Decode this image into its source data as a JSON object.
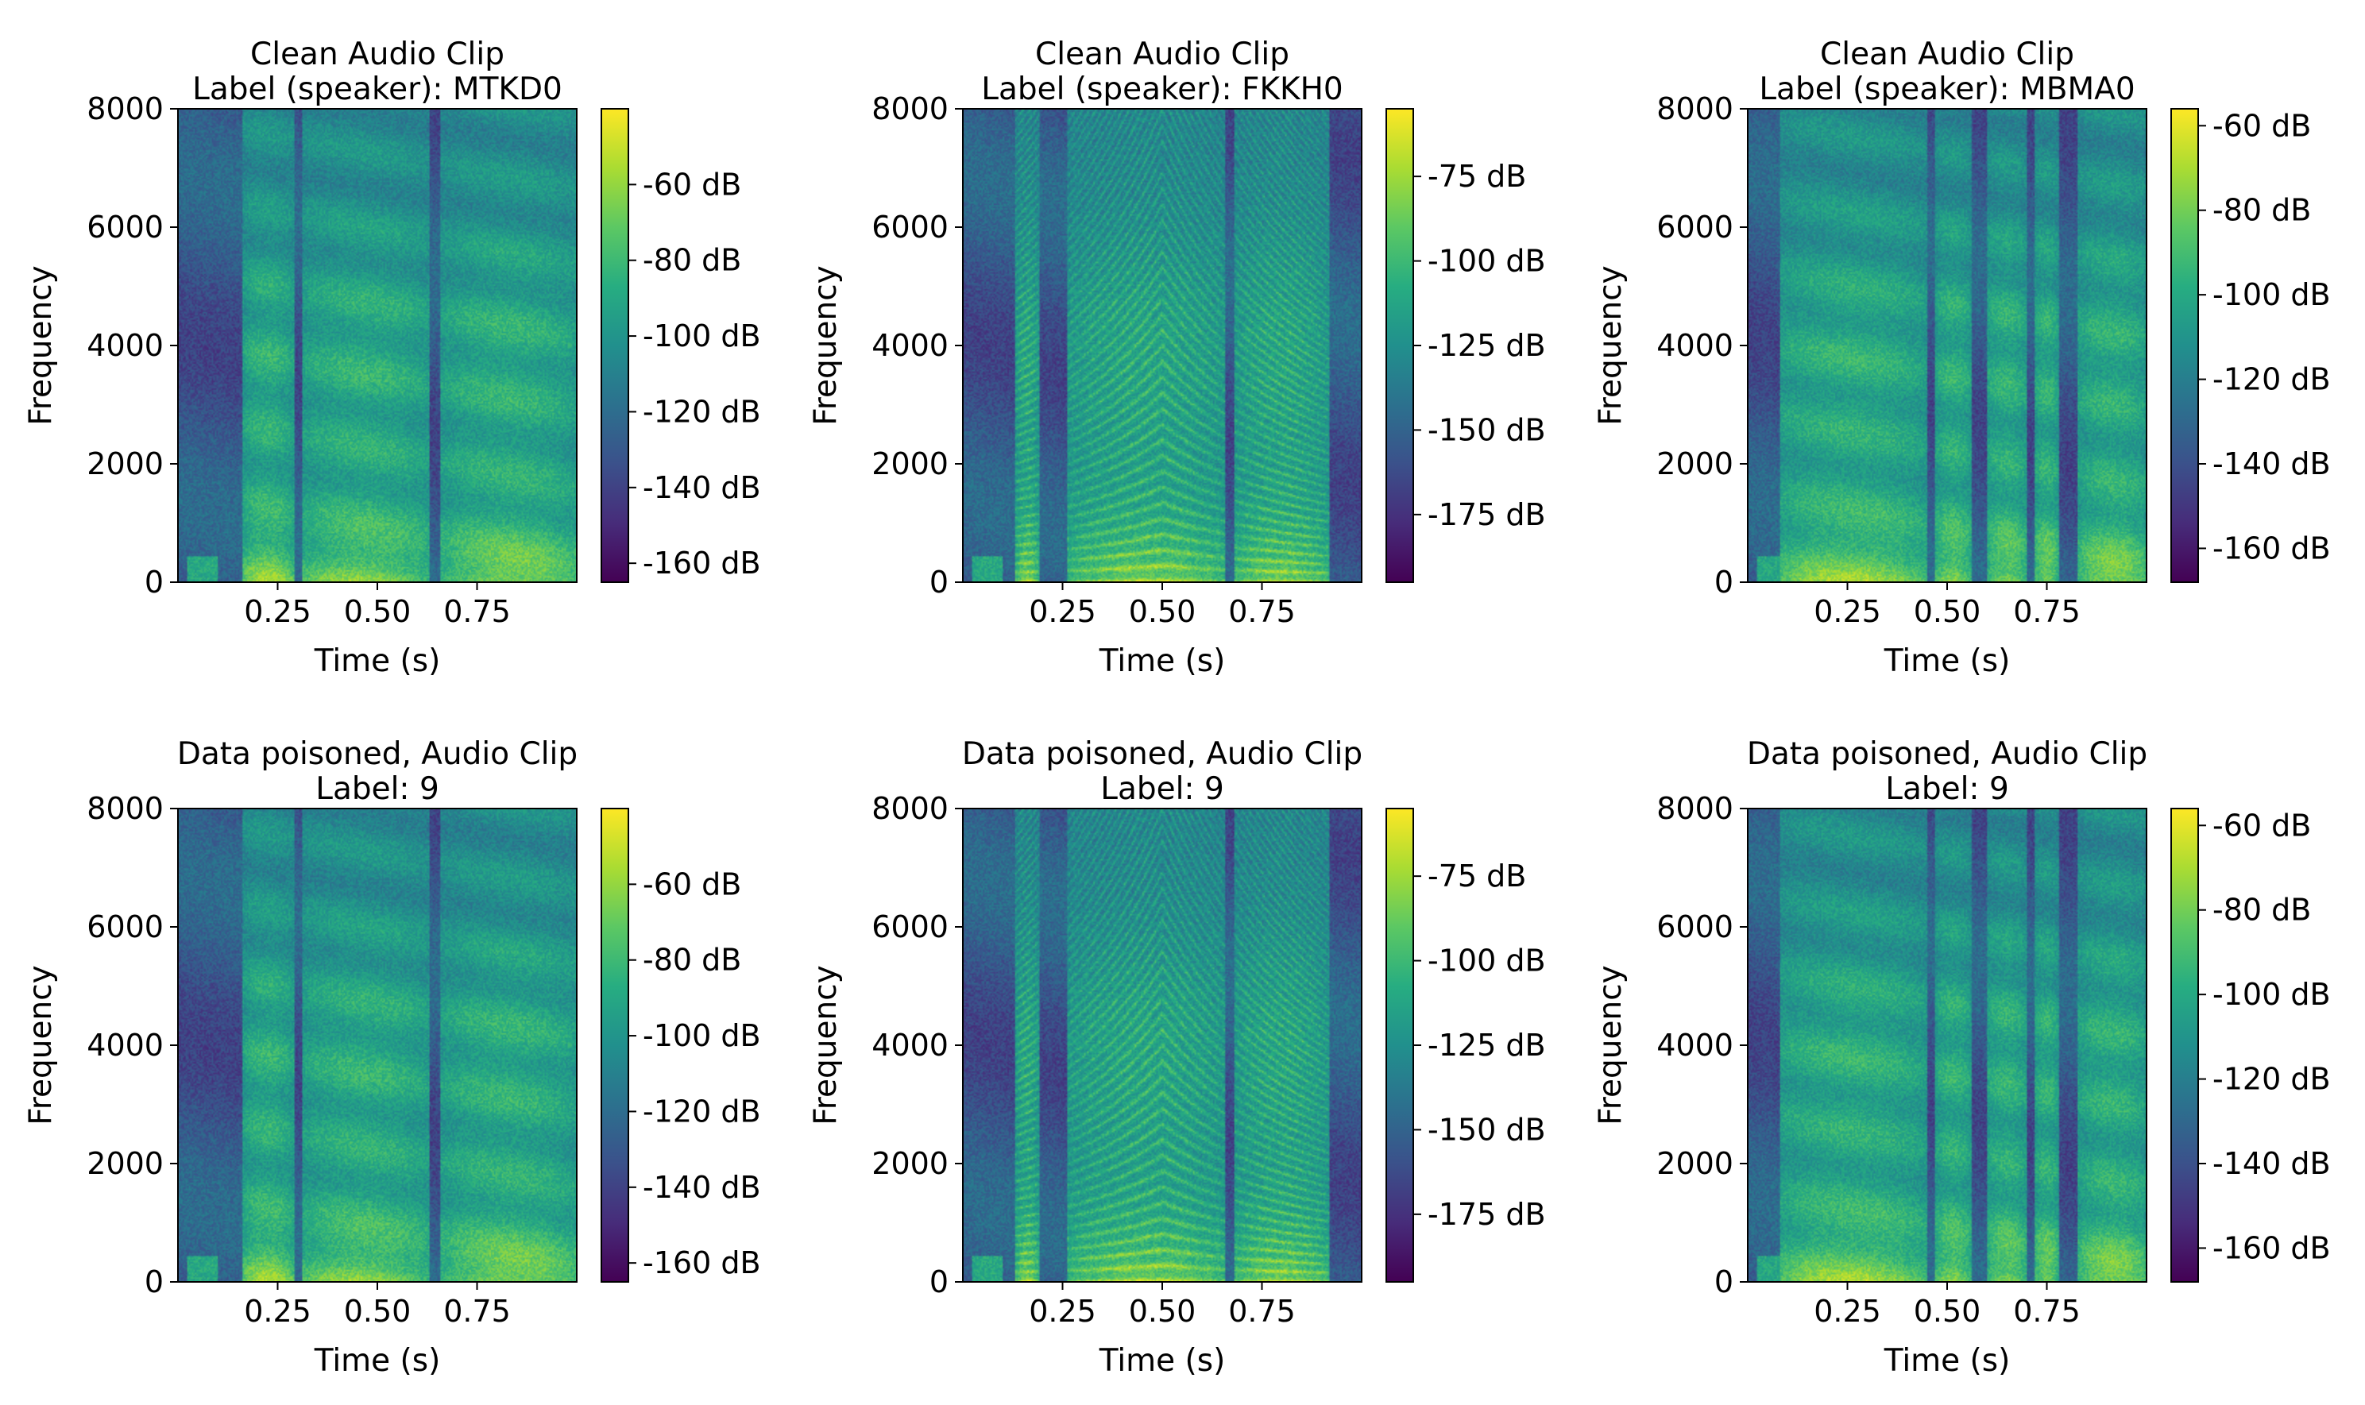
{
  "figure": {
    "rows": 2,
    "cols": 3
  },
  "colormap": {
    "name": "viridis",
    "stops": [
      "#440154",
      "#472c7a",
      "#3b518b",
      "#2c718e",
      "#21908d",
      "#27ad81",
      "#5cc863",
      "#aadc32",
      "#fde725"
    ]
  },
  "chart_data": [
    {
      "type": "heatmap",
      "panel": "clean-1",
      "title_lines": [
        "Clean Audio Clip",
        "Label (speaker): MTKD0"
      ],
      "xlabel": "Time (s)",
      "ylabel": "Frequency",
      "xlim": [
        0.0,
        1.0
      ],
      "ylim": [
        0,
        8000
      ],
      "xticks": [
        0.25,
        0.5,
        0.75
      ],
      "xtick_labels": [
        "0.25",
        "0.50",
        "0.75"
      ],
      "yticks": [
        0,
        2000,
        4000,
        6000,
        8000
      ],
      "ytick_labels": [
        "0",
        "2000",
        "4000",
        "6000",
        "8000"
      ],
      "colorbar": {
        "min_db": -165,
        "max_db": -40,
        "ticks": [
          -60,
          -80,
          -100,
          -120,
          -140,
          -160
        ],
        "tick_labels": [
          "-60 dB",
          "-80 dB",
          "-100 dB",
          "-120 dB",
          "-140 dB",
          "-160 dB"
        ]
      },
      "segments": [
        [
          0.16,
          0.29
        ],
        [
          0.31,
          0.63
        ],
        [
          0.66,
          1.0
        ]
      ],
      "seed": 11
    },
    {
      "type": "heatmap",
      "panel": "clean-2",
      "title_lines": [
        "Clean Audio Clip",
        "Label (speaker): FKKH0"
      ],
      "xlabel": "Time (s)",
      "ylabel": "Frequency",
      "xlim": [
        0.0,
        1.0
      ],
      "ylim": [
        0,
        8000
      ],
      "xticks": [
        0.25,
        0.5,
        0.75
      ],
      "xtick_labels": [
        "0.25",
        "0.50",
        "0.75"
      ],
      "yticks": [
        0,
        2000,
        4000,
        6000,
        8000
      ],
      "ytick_labels": [
        "0",
        "2000",
        "4000",
        "6000",
        "8000"
      ],
      "colorbar": {
        "min_db": -195,
        "max_db": -55,
        "ticks": [
          -75,
          -100,
          -125,
          -150,
          -175
        ],
        "tick_labels": [
          "-75 dB",
          "-100 dB",
          "-125 dB",
          "-150 dB",
          "-175 dB"
        ]
      },
      "segments": [
        [
          0.13,
          0.19
        ],
        [
          0.26,
          0.66
        ],
        [
          0.68,
          0.92
        ]
      ],
      "seed": 23
    },
    {
      "type": "heatmap",
      "panel": "clean-3",
      "title_lines": [
        "Clean Audio Clip",
        "Label (speaker): MBMA0"
      ],
      "xlabel": "Time (s)",
      "ylabel": "Frequency",
      "xlim": [
        0.0,
        1.0
      ],
      "ylim": [
        0,
        8000
      ],
      "xticks": [
        0.25,
        0.5,
        0.75
      ],
      "xtick_labels": [
        "0.25",
        "0.50",
        "0.75"
      ],
      "yticks": [
        0,
        2000,
        4000,
        6000,
        8000
      ],
      "ytick_labels": [
        "0",
        "2000",
        "4000",
        "6000",
        "8000"
      ],
      "colorbar": {
        "min_db": -168,
        "max_db": -56,
        "ticks": [
          -60,
          -80,
          -100,
          -120,
          -140,
          -160
        ],
        "tick_labels": [
          "-60 dB",
          "-80 dB",
          "-100 dB",
          "-120 dB",
          "-140 dB",
          "-160 dB"
        ]
      },
      "segments": [
        [
          0.08,
          0.45
        ],
        [
          0.47,
          0.56
        ],
        [
          0.6,
          0.7
        ],
        [
          0.72,
          0.78
        ],
        [
          0.83,
          1.0
        ]
      ],
      "seed": 37
    },
    {
      "type": "heatmap",
      "panel": "poisoned-1",
      "title_lines": [
        "Data poisoned,  Audio Clip",
        "Label: 9"
      ],
      "xlabel": "Time (s)",
      "ylabel": "Frequency",
      "xlim": [
        0.0,
        1.0
      ],
      "ylim": [
        0,
        8000
      ],
      "xticks": [
        0.25,
        0.5,
        0.75
      ],
      "xtick_labels": [
        "0.25",
        "0.50",
        "0.75"
      ],
      "yticks": [
        0,
        2000,
        4000,
        6000,
        8000
      ],
      "ytick_labels": [
        "0",
        "2000",
        "4000",
        "6000",
        "8000"
      ],
      "colorbar": {
        "min_db": -165,
        "max_db": -40,
        "ticks": [
          -60,
          -80,
          -100,
          -120,
          -140,
          -160
        ],
        "tick_labels": [
          "-60 dB",
          "-80 dB",
          "-100 dB",
          "-120 dB",
          "-140 dB",
          "-160 dB"
        ]
      },
      "segments": [
        [
          0.16,
          0.29
        ],
        [
          0.31,
          0.63
        ],
        [
          0.66,
          1.0
        ]
      ],
      "seed": 11
    },
    {
      "type": "heatmap",
      "panel": "poisoned-2",
      "title_lines": [
        "Data poisoned,  Audio Clip",
        "Label: 9"
      ],
      "xlabel": "Time (s)",
      "ylabel": "Frequency",
      "xlim": [
        0.0,
        1.0
      ],
      "ylim": [
        0,
        8000
      ],
      "xticks": [
        0.25,
        0.5,
        0.75
      ],
      "xtick_labels": [
        "0.25",
        "0.50",
        "0.75"
      ],
      "yticks": [
        0,
        2000,
        4000,
        6000,
        8000
      ],
      "ytick_labels": [
        "0",
        "2000",
        "4000",
        "6000",
        "8000"
      ],
      "colorbar": {
        "min_db": -195,
        "max_db": -55,
        "ticks": [
          -75,
          -100,
          -125,
          -150,
          -175
        ],
        "tick_labels": [
          "-75 dB",
          "-100 dB",
          "-125 dB",
          "-150 dB",
          "-175 dB"
        ]
      },
      "segments": [
        [
          0.13,
          0.19
        ],
        [
          0.26,
          0.66
        ],
        [
          0.68,
          0.92
        ]
      ],
      "seed": 23
    },
    {
      "type": "heatmap",
      "panel": "poisoned-3",
      "title_lines": [
        "Data poisoned,  Audio Clip",
        "Label: 9"
      ],
      "xlabel": "Time (s)",
      "ylabel": "Frequency",
      "xlim": [
        0.0,
        1.0
      ],
      "ylim": [
        0,
        8000
      ],
      "xticks": [
        0.25,
        0.5,
        0.75
      ],
      "xtick_labels": [
        "0.25",
        "0.50",
        "0.75"
      ],
      "yticks": [
        0,
        2000,
        4000,
        6000,
        8000
      ],
      "ytick_labels": [
        "0",
        "2000",
        "4000",
        "6000",
        "8000"
      ],
      "colorbar": {
        "min_db": -168,
        "max_db": -56,
        "ticks": [
          -60,
          -80,
          -100,
          -120,
          -140,
          -160
        ],
        "tick_labels": [
          "-60 dB",
          "-80 dB",
          "-100 dB",
          "-120 dB",
          "-140 dB",
          "-160 dB"
        ]
      },
      "segments": [
        [
          0.08,
          0.45
        ],
        [
          0.47,
          0.56
        ],
        [
          0.6,
          0.7
        ],
        [
          0.72,
          0.78
        ],
        [
          0.83,
          1.0
        ]
      ],
      "seed": 37
    }
  ]
}
